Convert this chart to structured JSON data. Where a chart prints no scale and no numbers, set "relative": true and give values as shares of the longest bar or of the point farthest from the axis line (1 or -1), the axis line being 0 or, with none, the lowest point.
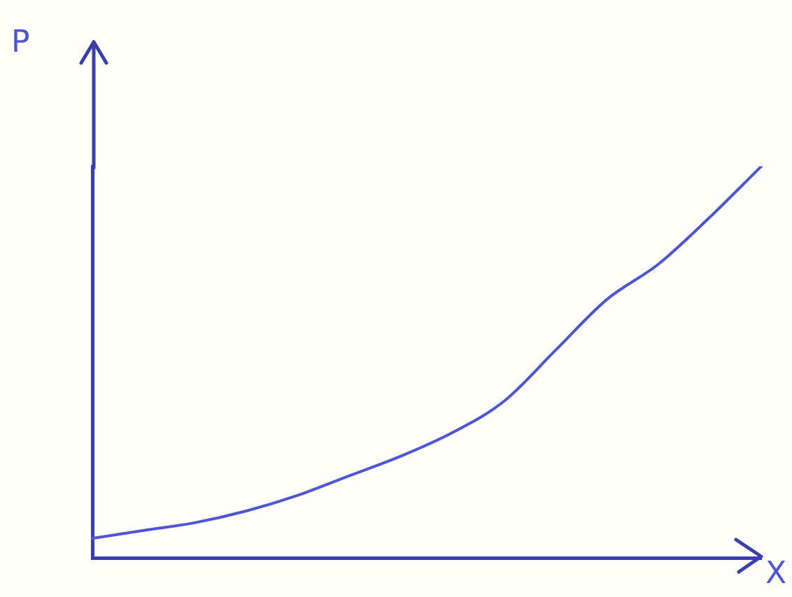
{
  "chart_data": {
    "type": "line",
    "xlabel": "X",
    "ylabel": "P",
    "relative": true,
    "grid": false,
    "legend": false,
    "marker": "none",
    "categories": [
      null,
      null,
      null,
      null,
      null,
      null,
      null,
      null,
      null,
      null,
      null,
      null,
      null,
      null
    ],
    "series": [
      {
        "color": "#4b55d6",
        "values": [
          0.05,
          0.07,
          0.09,
          0.12,
          0.16,
          0.21,
          0.26,
          0.32,
          0.4,
          0.53,
          0.66,
          0.75,
          0.87,
          1.0
        ]
      }
    ]
  }
}
